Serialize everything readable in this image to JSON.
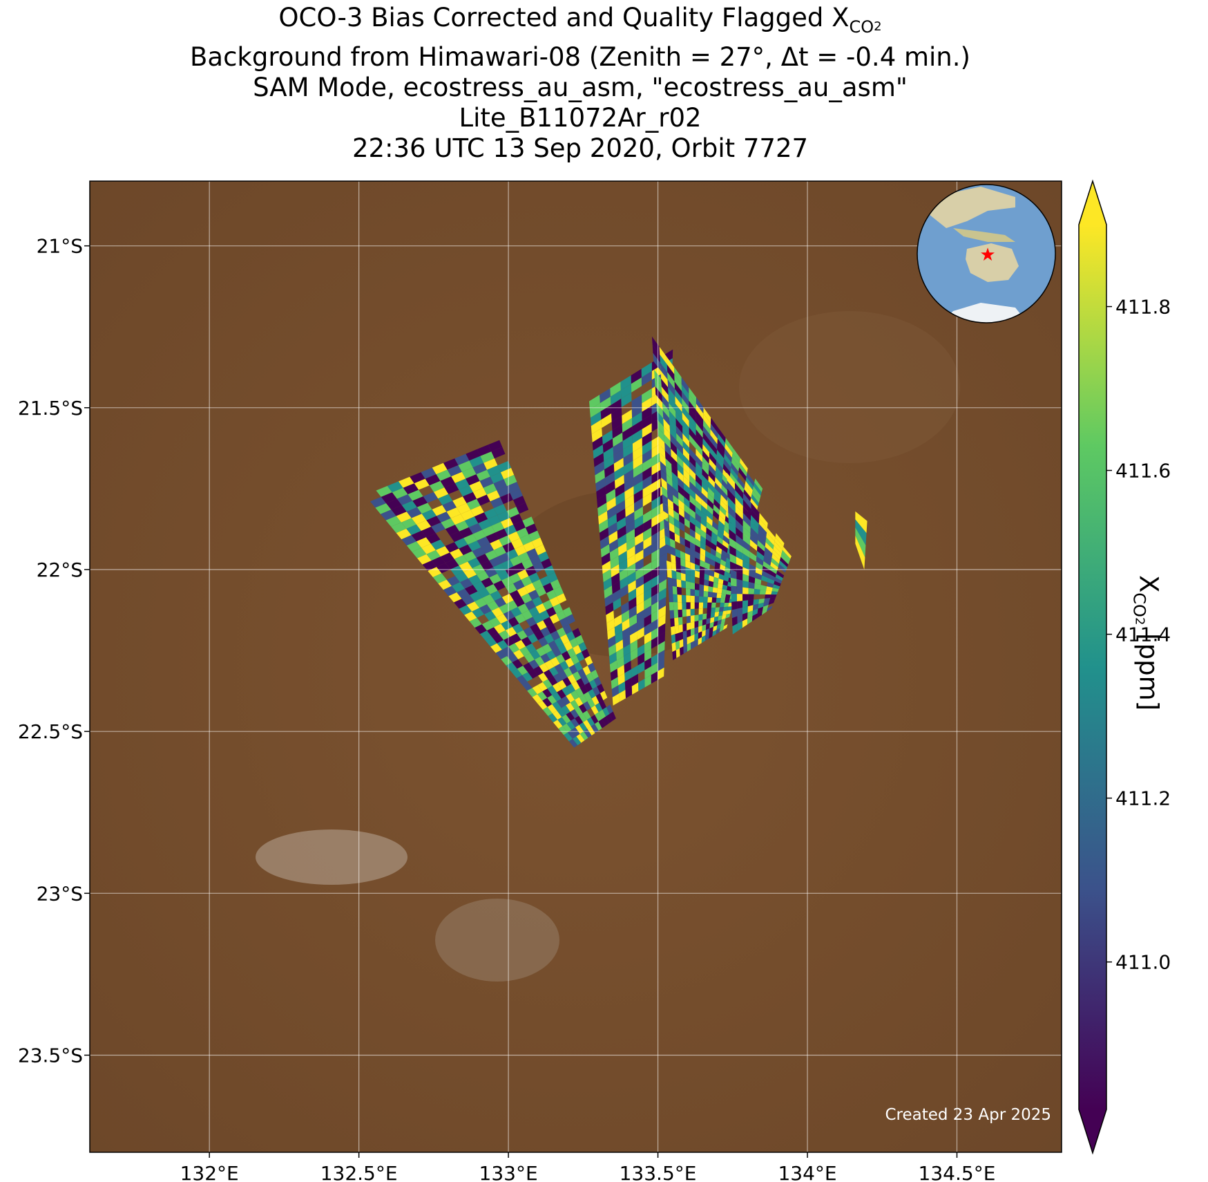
{
  "title": {
    "line1_main": "OCO-3 Bias Corrected and Quality Flagged X",
    "line1_sub": "CO",
    "line1_sub2": "2",
    "line2": "Background from Himawari-08 (Zenith = 27°, Δt = -0.4 min.)",
    "line3": "SAM Mode, ecostress_au_asm, \"ecostress_au_asm\"",
    "line4": "Lite_B11072Ar_r02",
    "line5": "22:36 UTC 13 Sep 2020, Orbit 7727"
  },
  "map": {
    "lon_range": [
      131.6,
      134.85
    ],
    "lat_range": [
      -23.8,
      -20.8
    ],
    "lon_ticks": [
      132,
      132.5,
      133,
      133.5,
      134,
      134.5
    ],
    "lon_tick_labels": [
      "132°E",
      "132.5°E",
      "133°E",
      "133.5°E",
      "134°E",
      "134.5°E"
    ],
    "lat_ticks": [
      -21,
      -21.5,
      -22,
      -22.5,
      -23,
      -23.5
    ],
    "lat_tick_labels": [
      "21°S",
      "21.5°S",
      "22°S",
      "22.5°S",
      "23°S",
      "23.5°S"
    ],
    "gridlines": true,
    "background_color": "#7a5230",
    "credit": "Created 23 Apr 2025",
    "inset_globe": {
      "marker": "red-star",
      "ocean_color": "#6f9fcf",
      "land_color": "#d8cfa8"
    }
  },
  "colorbar": {
    "label_main": "X",
    "label_sub": "CO",
    "label_sub2": "2",
    "label_unit": " [ppm]",
    "range": [
      410.82,
      411.9
    ],
    "ticks": [
      411.0,
      411.2,
      411.4,
      411.6,
      411.8
    ],
    "tick_labels": [
      "411.0",
      "411.2",
      "411.4",
      "411.6",
      "411.8"
    ],
    "extend": "both",
    "colormap": [
      "#440154",
      "#3b528b",
      "#21918c",
      "#5ec962",
      "#fde725"
    ]
  },
  "chart_data": {
    "type": "heatmap",
    "variable": "XCO2",
    "swaths": [
      {
        "corners_lonlat": [
          [
            132.52,
            -21.77
          ],
          [
            132.97,
            -21.6
          ],
          [
            133.36,
            -22.46
          ],
          [
            133.22,
            -22.55
          ]
        ]
      },
      {
        "corners_lonlat": [
          [
            133.27,
            -21.48
          ],
          [
            133.55,
            -21.32
          ],
          [
            133.52,
            -22.33
          ],
          [
            133.35,
            -22.42
          ]
        ]
      },
      {
        "corners_lonlat": [
          [
            133.48,
            -21.28
          ],
          [
            133.85,
            -21.75
          ],
          [
            133.73,
            -22.18
          ],
          [
            133.55,
            -22.28
          ]
        ]
      },
      {
        "corners_lonlat": [
          [
            133.73,
            -21.7
          ],
          [
            133.95,
            -21.95
          ],
          [
            133.88,
            -22.12
          ],
          [
            133.75,
            -22.2
          ]
        ]
      },
      {
        "corners_lonlat": [
          [
            134.16,
            -21.82
          ],
          [
            134.2,
            -21.85
          ],
          [
            134.19,
            -22.0
          ],
          [
            134.16,
            -21.92
          ]
        ]
      }
    ]
  }
}
